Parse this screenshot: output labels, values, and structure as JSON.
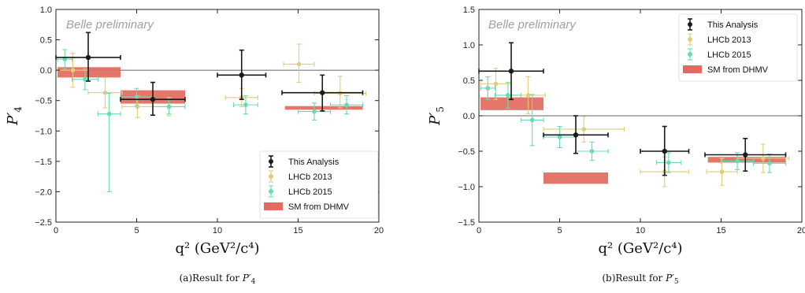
{
  "chart_data": [
    {
      "type": "scatter",
      "panel_label": "(a)Result for ",
      "panel_symbol": "P′",
      "panel_subscript": "4",
      "watermark": "Belle preliminary",
      "ylabel_symbol": "P′",
      "ylabel_subscript": "4",
      "xlabel": "q² (GeV²/c⁴)",
      "xlim": [
        0,
        20
      ],
      "ylim": [
        -2.5,
        1.0
      ],
      "xticks": [
        0,
        5,
        10,
        15,
        20
      ],
      "yticks": [
        -2.5,
        -2.0,
        -1.5,
        -1.0,
        -0.5,
        0.0,
        0.5,
        1.0
      ],
      "tick_labels_x": [
        "0",
        "5",
        "10",
        "15",
        "20"
      ],
      "tick_labels_y": [
        "−2.5",
        "−2.0",
        "−1.5",
        "−1.0",
        "−0.5",
        "0.0",
        "0.5",
        "1.0"
      ],
      "zero_line": true,
      "legend_position": "bottom-right",
      "series": [
        {
          "name": "SM from DHMV",
          "kind": "band",
          "color": "#e26a5e",
          "bins": [
            {
              "xmin": 0.1,
              "xmax": 4.0,
              "ylo": -0.12,
              "yhi": 0.05
            },
            {
              "xmin": 4.0,
              "xmax": 8.0,
              "ylo": -0.55,
              "yhi": -0.33
            },
            {
              "xmin": 14.18,
              "xmax": 19.0,
              "ylo": -0.65,
              "yhi": -0.59
            }
          ]
        },
        {
          "name": "LHCb 2013",
          "kind": "points",
          "color": "#e0cc7a",
          "points": [
            {
              "x": 1.05,
              "xerr": 0.95,
              "y": 0.0,
              "ylo": -0.28,
              "yhi": 0.28
            },
            {
              "x": 3.05,
              "xerr": 1.05,
              "y": -0.37,
              "ylo": -0.62,
              "yhi": -0.12
            },
            {
              "x": 5.05,
              "xerr": 0.95,
              "y": -0.6,
              "ylo": -0.78,
              "yhi": -0.42
            },
            {
              "x": 7.0,
              "xerr": 1.0,
              "y": -0.6,
              "ylo": -0.75,
              "yhi": -0.45
            },
            {
              "x": 11.5,
              "xerr": 1.0,
              "y": -0.45,
              "ylo": -0.6,
              "yhi": -0.3
            },
            {
              "x": 15.05,
              "xerr": 0.95,
              "y": 0.1,
              "ylo": -0.2,
              "yhi": 0.43
            },
            {
              "x": 17.6,
              "xerr": 1.6,
              "y": -0.38,
              "ylo": -0.62,
              "yhi": -0.1
            }
          ]
        },
        {
          "name": "LHCb 2015",
          "kind": "points",
          "color": "#66ddb0",
          "points": [
            {
              "x": 0.55,
              "xerr": 0.45,
              "y": 0.18,
              "ylo": 0.02,
              "yhi": 0.34
            },
            {
              "x": 1.8,
              "xerr": 0.8,
              "y": -0.15,
              "ylo": -0.32,
              "yhi": 0.02
            },
            {
              "x": 3.3,
              "xerr": 0.7,
              "y": -0.72,
              "ylo": -2.0,
              "yhi": -0.38
            },
            {
              "x": 5.0,
              "xerr": 1.0,
              "y": -0.44,
              "ylo": -0.58,
              "yhi": -0.3
            },
            {
              "x": 7.0,
              "xerr": 1.0,
              "y": -0.6,
              "ylo": -0.72,
              "yhi": -0.48
            },
            {
              "x": 11.75,
              "xerr": 0.75,
              "y": -0.57,
              "ylo": -0.72,
              "yhi": -0.42
            },
            {
              "x": 16.0,
              "xerr": 1.0,
              "y": -0.68,
              "ylo": -0.82,
              "yhi": -0.54
            },
            {
              "x": 18.0,
              "xerr": 1.0,
              "y": -0.57,
              "ylo": -0.72,
              "yhi": -0.42
            }
          ]
        },
        {
          "name": "This Analysis",
          "kind": "points",
          "color": "#1a1a1a",
          "points": [
            {
              "x": 2.0,
              "xerr": 2.0,
              "y": 0.21,
              "ylo": -0.18,
              "yhi": 0.62
            },
            {
              "x": 6.0,
              "xerr": 2.0,
              "y": -0.48,
              "ylo": -0.74,
              "yhi": -0.2
            },
            {
              "x": 11.5,
              "xerr": 1.5,
              "y": -0.08,
              "ylo": -0.48,
              "yhi": 0.33
            },
            {
              "x": 16.5,
              "xerr": 2.5,
              "y": -0.37,
              "ylo": -0.67,
              "yhi": -0.08
            }
          ]
        }
      ],
      "legend_order": [
        "This Analysis",
        "LHCb 2013",
        "LHCb 2015",
        "SM from DHMV"
      ]
    },
    {
      "type": "scatter",
      "panel_label": "(b)Result for ",
      "panel_symbol": "P′",
      "panel_subscript": "5",
      "watermark": "Belle preliminary",
      "ylabel_symbol": "P′",
      "ylabel_subscript": "5",
      "xlabel": "q² (GeV²/c⁴)",
      "xlim": [
        0,
        20
      ],
      "ylim": [
        -1.5,
        1.5
      ],
      "xticks": [
        0,
        5,
        10,
        15,
        20
      ],
      "yticks": [
        -1.5,
        -1.0,
        -0.5,
        0.0,
        0.5,
        1.0,
        1.5
      ],
      "tick_labels_x": [
        "0",
        "5",
        "10",
        "15",
        "20"
      ],
      "tick_labels_y": [
        "−1.5",
        "−1.0",
        "−0.5",
        "0.0",
        "0.5",
        "1.0",
        "1.5"
      ],
      "zero_line": true,
      "legend_position": "top-right",
      "series": [
        {
          "name": "SM from DHMV",
          "kind": "band",
          "color": "#e26a5e",
          "bins": [
            {
              "xmin": 0.1,
              "xmax": 4.0,
              "ylo": 0.08,
              "yhi": 0.26
            },
            {
              "xmin": 4.0,
              "xmax": 8.0,
              "ylo": -0.96,
              "yhi": -0.8
            },
            {
              "xmin": 14.18,
              "xmax": 19.0,
              "ylo": -0.66,
              "yhi": -0.58
            }
          ]
        },
        {
          "name": "LHCb 2013",
          "kind": "points",
          "color": "#e0cc7a",
          "points": [
            {
              "x": 1.05,
              "xerr": 0.95,
              "y": 0.45,
              "ylo": 0.23,
              "yhi": 0.67
            },
            {
              "x": 3.05,
              "xerr": 1.05,
              "y": 0.29,
              "ylo": 0.03,
              "yhi": 0.55
            },
            {
              "x": 6.5,
              "xerr": 2.5,
              "y": -0.19,
              "ylo": -0.37,
              "yhi": -0.01
            },
            {
              "x": 11.5,
              "xerr": 1.5,
              "y": -0.79,
              "ylo": -1.0,
              "yhi": -0.58
            },
            {
              "x": 15.05,
              "xerr": 0.95,
              "y": -0.79,
              "ylo": -0.98,
              "yhi": -0.6
            },
            {
              "x": 17.6,
              "xerr": 1.6,
              "y": -0.6,
              "ylo": -0.8,
              "yhi": -0.4
            }
          ]
        },
        {
          "name": "LHCb 2015",
          "kind": "points",
          "color": "#66ddb0",
          "points": [
            {
              "x": 0.55,
              "xerr": 0.45,
              "y": 0.39,
              "ylo": 0.23,
              "yhi": 0.55
            },
            {
              "x": 1.8,
              "xerr": 0.8,
              "y": 0.29,
              "ylo": 0.11,
              "yhi": 0.47
            },
            {
              "x": 3.3,
              "xerr": 0.7,
              "y": -0.06,
              "ylo": -0.42,
              "yhi": 0.3
            },
            {
              "x": 5.0,
              "xerr": 1.0,
              "y": -0.3,
              "ylo": -0.45,
              "yhi": -0.15
            },
            {
              "x": 7.0,
              "xerr": 1.0,
              "y": -0.5,
              "ylo": -0.63,
              "yhi": -0.37
            },
            {
              "x": 11.75,
              "xerr": 0.75,
              "y": -0.66,
              "ylo": -0.8,
              "yhi": -0.52
            },
            {
              "x": 16.0,
              "xerr": 1.0,
              "y": -0.64,
              "ylo": -0.76,
              "yhi": -0.52
            },
            {
              "x": 18.0,
              "xerr": 1.0,
              "y": -0.67,
              "ylo": -0.8,
              "yhi": -0.54
            }
          ]
        },
        {
          "name": "This Analysis",
          "kind": "points",
          "color": "#1a1a1a",
          "points": [
            {
              "x": 2.0,
              "xerr": 2.0,
              "y": 0.63,
              "ylo": 0.23,
              "yhi": 1.03
            },
            {
              "x": 6.0,
              "xerr": 2.0,
              "y": -0.27,
              "ylo": -0.53,
              "yhi": 0.0
            },
            {
              "x": 11.5,
              "xerr": 1.5,
              "y": -0.5,
              "ylo": -0.84,
              "yhi": -0.15
            },
            {
              "x": 16.5,
              "xerr": 2.5,
              "y": -0.55,
              "ylo": -0.78,
              "yhi": -0.32
            }
          ]
        }
      ],
      "legend_order": [
        "This Analysis",
        "LHCb 2013",
        "LHCb 2015",
        "SM from DHMV"
      ]
    }
  ]
}
